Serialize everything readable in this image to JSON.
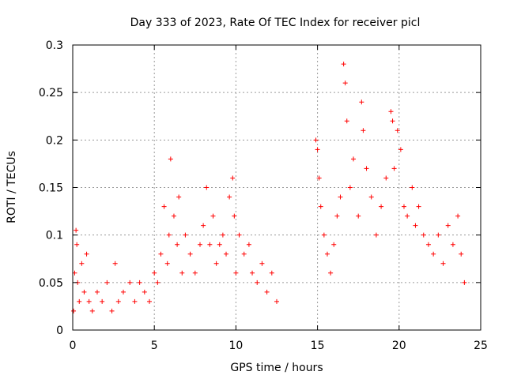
{
  "chart_data": {
    "type": "scatter",
    "title": "Day 333 of 2023, Rate Of TEC Index for receiver picl",
    "xlabel": "GPS time / hours",
    "ylabel": "ROTI / TECUs",
    "xlim": [
      0,
      25
    ],
    "ylim": [
      0,
      0.3
    ],
    "xticks": [
      0,
      5,
      10,
      15,
      20,
      25
    ],
    "yticks": [
      0,
      0.05,
      0.1,
      0.15,
      0.2,
      0.25,
      0.3
    ],
    "ytick_labels": [
      "0",
      "0.05",
      "0.1",
      "0.15",
      "0.2",
      "0.25",
      "0.3"
    ],
    "grid": true,
    "marker": "+",
    "series": [
      {
        "name": "ROTI",
        "color": "#ff0000",
        "data_gap_hours": [
          12.6,
          14.8
        ],
        "x": [
          0.05,
          0.12,
          0.2,
          0.25,
          0.3,
          0.4,
          0.55,
          0.7,
          0.85,
          1.0,
          1.2,
          1.5,
          1.8,
          2.1,
          2.4,
          2.6,
          2.8,
          3.1,
          3.5,
          3.8,
          4.1,
          4.4,
          4.7,
          5.0,
          5.2,
          5.4,
          5.6,
          5.8,
          5.9,
          6.0,
          6.2,
          6.4,
          6.5,
          6.7,
          6.9,
          7.2,
          7.5,
          7.8,
          8.0,
          8.2,
          8.4,
          8.6,
          8.8,
          9.0,
          9.2,
          9.4,
          9.6,
          9.8,
          9.9,
          10.0,
          10.2,
          10.5,
          10.8,
          11.0,
          11.3,
          11.6,
          11.9,
          12.2,
          12.5,
          14.9,
          15.0,
          15.1,
          15.2,
          15.4,
          15.6,
          15.8,
          16.0,
          16.2,
          16.4,
          16.6,
          16.7,
          16.8,
          17.0,
          17.2,
          17.5,
          17.7,
          17.8,
          18.0,
          18.3,
          18.6,
          18.9,
          19.2,
          19.5,
          19.6,
          19.7,
          19.9,
          20.1,
          20.3,
          20.5,
          20.8,
          21.0,
          21.2,
          21.5,
          21.8,
          22.1,
          22.4,
          22.7,
          23.0,
          23.3,
          23.6,
          23.8,
          24.0
        ],
        "y": [
          0.02,
          0.06,
          0.105,
          0.09,
          0.05,
          0.03,
          0.07,
          0.04,
          0.08,
          0.03,
          0.02,
          0.04,
          0.03,
          0.05,
          0.02,
          0.07,
          0.03,
          0.04,
          0.05,
          0.03,
          0.05,
          0.04,
          0.03,
          0.06,
          0.05,
          0.08,
          0.13,
          0.07,
          0.1,
          0.18,
          0.12,
          0.09,
          0.14,
          0.06,
          0.1,
          0.08,
          0.06,
          0.09,
          0.11,
          0.15,
          0.09,
          0.12,
          0.07,
          0.09,
          0.1,
          0.08,
          0.14,
          0.16,
          0.12,
          0.06,
          0.1,
          0.08,
          0.09,
          0.06,
          0.05,
          0.07,
          0.04,
          0.06,
          0.03,
          0.2,
          0.19,
          0.16,
          0.13,
          0.1,
          0.08,
          0.06,
          0.09,
          0.12,
          0.14,
          0.28,
          0.26,
          0.22,
          0.15,
          0.18,
          0.12,
          0.24,
          0.21,
          0.17,
          0.14,
          0.1,
          0.13,
          0.16,
          0.23,
          0.22,
          0.17,
          0.21,
          0.19,
          0.13,
          0.12,
          0.15,
          0.11,
          0.13,
          0.1,
          0.09,
          0.08,
          0.1,
          0.07,
          0.11,
          0.09,
          0.12,
          0.08,
          0.05
        ]
      }
    ]
  }
}
